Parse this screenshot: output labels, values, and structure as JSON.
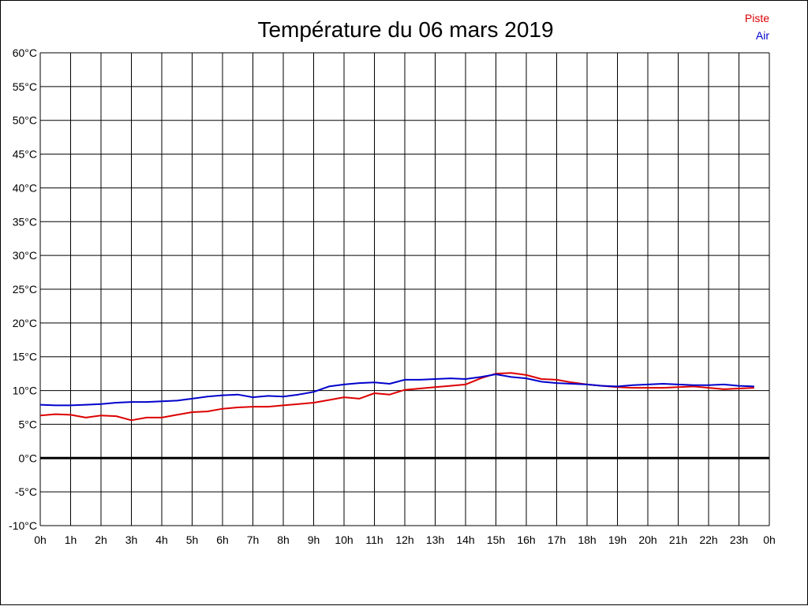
{
  "chart_data": {
    "type": "line",
    "title": "Température du 06 mars 2019",
    "ylim": [
      -10,
      60
    ],
    "y_ticks": [
      60,
      55,
      50,
      45,
      40,
      35,
      30,
      25,
      20,
      15,
      10,
      5,
      0,
      -5,
      -10
    ],
    "y_tick_labels": [
      "60°C",
      "55°C",
      "50°C",
      "45°C",
      "40°C",
      "35°C",
      "30°C",
      "25°C",
      "20°C",
      "15°C",
      "10°C",
      "5°C",
      "0°C",
      "-5°C",
      "-10°C"
    ],
    "xlim": [
      0,
      24
    ],
    "x_ticks": [
      0,
      1,
      2,
      3,
      4,
      5,
      6,
      7,
      8,
      9,
      10,
      11,
      12,
      13,
      14,
      15,
      16,
      17,
      18,
      19,
      20,
      21,
      22,
      23,
      24
    ],
    "x_tick_labels": [
      "0h",
      "1h",
      "2h",
      "3h",
      "4h",
      "5h",
      "6h",
      "7h",
      "8h",
      "9h",
      "10h",
      "11h",
      "12h",
      "13h",
      "14h",
      "15h",
      "16h",
      "17h",
      "18h",
      "19h",
      "20h",
      "21h",
      "22h",
      "23h",
      "0h"
    ],
    "grid": true,
    "zero_line": true,
    "legend_position": "top-right",
    "x": [
      0,
      0.5,
      1,
      1.5,
      2,
      2.5,
      3,
      3.5,
      4,
      4.5,
      5,
      5.5,
      6,
      6.5,
      7,
      7.5,
      8,
      8.5,
      9,
      9.5,
      10,
      10.5,
      11,
      11.5,
      12,
      12.5,
      13,
      13.5,
      14,
      14.5,
      15,
      15.5,
      16,
      16.5,
      17,
      17.5,
      18,
      18.5,
      19,
      19.5,
      20,
      20.5,
      21,
      21.5,
      22,
      22.5,
      23,
      23.5
    ],
    "series": [
      {
        "name": "Piste",
        "color": "#dd0000",
        "values": [
          6.3,
          6.5,
          6.4,
          6.0,
          6.3,
          6.2,
          5.6,
          6.0,
          6.0,
          6.4,
          6.8,
          6.9,
          7.3,
          7.5,
          7.6,
          7.6,
          7.8,
          8.0,
          8.2,
          8.6,
          9.0,
          8.8,
          9.6,
          9.4,
          10.1,
          10.3,
          10.5,
          10.7,
          10.9,
          11.8,
          12.5,
          12.6,
          12.3,
          11.7,
          11.6,
          11.2,
          10.9,
          10.7,
          10.5,
          10.4,
          10.4,
          10.4,
          10.5,
          10.6,
          10.4,
          10.2,
          10.3,
          10.4
        ]
      },
      {
        "name": "Air",
        "color": "#0000cc",
        "values": [
          7.9,
          7.8,
          7.8,
          7.9,
          8.0,
          8.2,
          8.3,
          8.3,
          8.4,
          8.5,
          8.8,
          9.1,
          9.3,
          9.4,
          9.0,
          9.2,
          9.1,
          9.4,
          9.8,
          10.6,
          10.9,
          11.1,
          11.2,
          11.0,
          11.6,
          11.6,
          11.7,
          11.8,
          11.7,
          12.0,
          12.4,
          12.0,
          11.8,
          11.3,
          11.1,
          11.0,
          10.9,
          10.7,
          10.6,
          10.8,
          10.9,
          11.0,
          10.9,
          10.8,
          10.8,
          10.9,
          10.7,
          10.6
        ]
      }
    ]
  }
}
